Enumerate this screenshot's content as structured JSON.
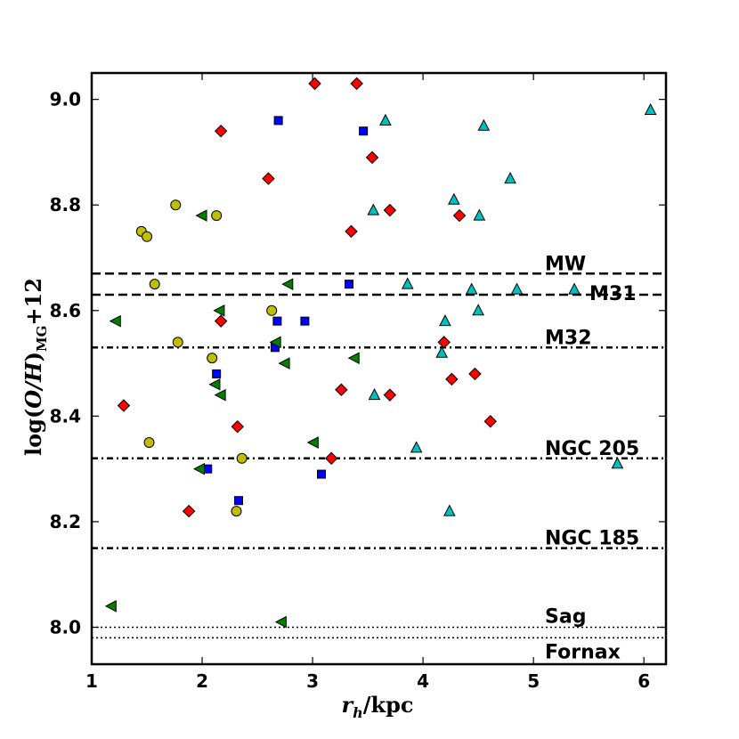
{
  "chart_data": {
    "type": "scatter",
    "title": "",
    "xlabel": {
      "var": "r",
      "sub": "h",
      "rest": "/kpc"
    },
    "ylabel": {
      "pre": "log(",
      "var": "O/H",
      "post": ")",
      "sub": "MG",
      "tail": "+12"
    },
    "xlim": [
      1.0,
      6.2
    ],
    "ylim": [
      7.93,
      9.05
    ],
    "xticks": [
      1,
      2,
      3,
      4,
      5,
      6
    ],
    "yticks": [
      8.0,
      8.2,
      8.4,
      8.6,
      8.8,
      9.0
    ],
    "ytick_labels": [
      "8.0",
      "8.2",
      "8.4",
      "8.6",
      "8.8",
      "9.0"
    ],
    "reference_lines": [
      {
        "name": "MW",
        "y": 8.67,
        "style": "dashed"
      },
      {
        "name": "M31",
        "y": 8.63,
        "style": "dashed"
      },
      {
        "name": "M32",
        "y": 8.53,
        "style": "dashdot"
      },
      {
        "name": "NGC 205",
        "y": 8.32,
        "style": "dashdot"
      },
      {
        "name": "NGC 185",
        "y": 8.15,
        "style": "dashdot"
      },
      {
        "name": "Sag",
        "y": 8.0,
        "style": "dotted"
      },
      {
        "name": "Fornax",
        "y": 7.98,
        "style": "dotted"
      }
    ],
    "series": [
      {
        "name": "red diamonds",
        "marker": "diamond",
        "color": "#ff0000",
        "points": [
          [
            1.29,
            8.42
          ],
          [
            1.88,
            8.22
          ],
          [
            2.17,
            8.94
          ],
          [
            2.17,
            8.58
          ],
          [
            2.32,
            8.38
          ],
          [
            2.6,
            8.85
          ],
          [
            3.02,
            9.03
          ],
          [
            3.17,
            8.32
          ],
          [
            3.26,
            8.45
          ],
          [
            3.35,
            8.75
          ],
          [
            3.4,
            9.03
          ],
          [
            3.54,
            8.89
          ],
          [
            3.7,
            8.79
          ],
          [
            3.7,
            8.44
          ],
          [
            4.19,
            8.54
          ],
          [
            4.26,
            8.47
          ],
          [
            4.33,
            8.78
          ],
          [
            4.47,
            8.48
          ],
          [
            4.61,
            8.39
          ]
        ]
      },
      {
        "name": "blue squares",
        "marker": "square",
        "color": "#0000ff",
        "points": [
          [
            2.05,
            8.3
          ],
          [
            2.13,
            8.48
          ],
          [
            2.33,
            8.24
          ],
          [
            2.66,
            8.53
          ],
          [
            2.68,
            8.58
          ],
          [
            2.69,
            8.96
          ],
          [
            2.93,
            8.58
          ],
          [
            3.08,
            8.29
          ],
          [
            3.33,
            8.65
          ],
          [
            3.46,
            8.94
          ]
        ]
      },
      {
        "name": "cyan triangles",
        "marker": "triangle-up",
        "color": "#00bfbf",
        "points": [
          [
            3.55,
            8.79
          ],
          [
            3.56,
            8.44
          ],
          [
            3.66,
            8.96
          ],
          [
            3.86,
            8.65
          ],
          [
            3.94,
            8.34
          ],
          [
            4.17,
            8.52
          ],
          [
            4.2,
            8.58
          ],
          [
            4.24,
            8.22
          ],
          [
            4.28,
            8.81
          ],
          [
            4.44,
            8.64
          ],
          [
            4.5,
            8.6
          ],
          [
            4.51,
            8.78
          ],
          [
            4.55,
            8.95
          ],
          [
            4.79,
            8.85
          ],
          [
            4.85,
            8.64
          ],
          [
            5.37,
            8.64
          ],
          [
            5.76,
            8.31
          ],
          [
            6.06,
            8.98
          ]
        ]
      },
      {
        "name": "green triangles",
        "marker": "triangle-left",
        "color": "#007f00",
        "points": [
          [
            1.18,
            8.04
          ],
          [
            1.22,
            8.58
          ],
          [
            1.98,
            8.3
          ],
          [
            2.0,
            8.78
          ],
          [
            2.12,
            8.46
          ],
          [
            2.16,
            8.6
          ],
          [
            2.17,
            8.44
          ],
          [
            2.67,
            8.54
          ],
          [
            2.72,
            8.01
          ],
          [
            2.75,
            8.5
          ],
          [
            2.78,
            8.65
          ],
          [
            3.01,
            8.35
          ],
          [
            3.38,
            8.51
          ]
        ]
      },
      {
        "name": "yellow circles",
        "marker": "circle",
        "color": "#bfbf00",
        "points": [
          [
            1.45,
            8.75
          ],
          [
            1.5,
            8.74
          ],
          [
            1.52,
            8.35
          ],
          [
            1.57,
            8.65
          ],
          [
            1.76,
            8.8
          ],
          [
            1.78,
            8.54
          ],
          [
            2.09,
            8.51
          ],
          [
            2.13,
            8.78
          ],
          [
            2.31,
            8.22
          ],
          [
            2.36,
            8.32
          ],
          [
            2.63,
            8.6
          ]
        ]
      }
    ]
  }
}
